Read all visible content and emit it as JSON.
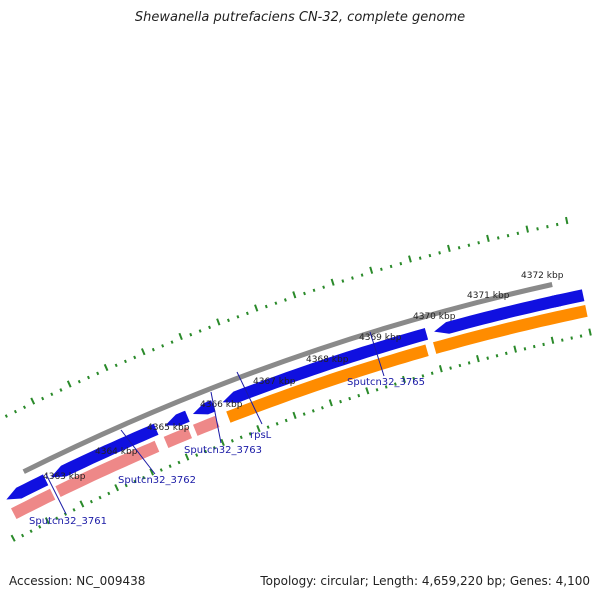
{
  "title": "Shewanella putrefaciens CN-32, complete genome",
  "footer": {
    "accession": "Accession: NC_009438",
    "summary": "Topology: circular; Length: 4,659,220 bp; Genes: 4,100"
  },
  "colors": {
    "backbone": "#8a8a8a",
    "forward_cds": "#1010e0",
    "reverse_cds": "#ee8888",
    "orange_feature": "#ff8c00",
    "ticks": "#2a8a2a",
    "label": "#1a1aa6"
  },
  "scale_labels": [
    "4363 kbp",
    "4364 kbp",
    "4365 kbp",
    "4366 kbp",
    "4367 kbp",
    "4368 kbp",
    "4369 kbp",
    "4370 kbp",
    "4371 kbp",
    "4372 kbp"
  ],
  "gene_labels": [
    "Sputcn32_3761",
    "Sputcn32_3762",
    "Sputcn32_3763",
    "rpsL",
    "Sputcn32_3765"
  ]
}
